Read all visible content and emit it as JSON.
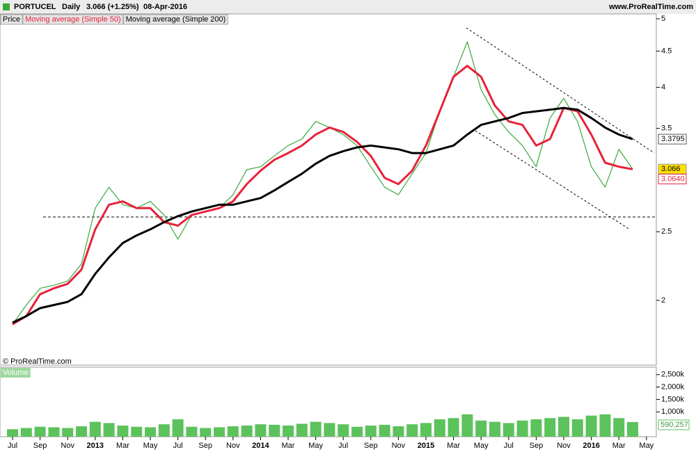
{
  "header": {
    "symbol": "PORTUCEL",
    "period": "Daily",
    "quote": "3.066 (+1.25%)",
    "date": "08-Apr-2016",
    "site": "www.ProRealTime.com",
    "copyright": "© ProRealTime.com"
  },
  "chart_data": [
    {
      "type": "line",
      "log_scale": true,
      "grid": false,
      "x": [
        "2012-07",
        "2012-08",
        "2012-09",
        "2012-10",
        "2012-11",
        "2012-12",
        "2013-01",
        "2013-02",
        "2013-03",
        "2013-04",
        "2013-05",
        "2013-06",
        "2013-07",
        "2013-08",
        "2013-09",
        "2013-10",
        "2013-11",
        "2013-12",
        "2014-01",
        "2014-02",
        "2014-03",
        "2014-04",
        "2014-05",
        "2014-06",
        "2014-07",
        "2014-08",
        "2014-09",
        "2014-10",
        "2014-11",
        "2014-12",
        "2015-01",
        "2015-02",
        "2015-03",
        "2015-04",
        "2015-05",
        "2015-06",
        "2015-07",
        "2015-08",
        "2015-09",
        "2015-10",
        "2015-11",
        "2015-12",
        "2016-01",
        "2016-02",
        "2016-03",
        "2016-04"
      ],
      "series": [
        {
          "name": "Price",
          "color": "#3aa83a",
          "values": [
            1.85,
            1.97,
            2.08,
            2.1,
            2.13,
            2.25,
            2.7,
            2.89,
            2.73,
            2.7,
            2.76,
            2.64,
            2.44,
            2.64,
            2.67,
            2.7,
            2.82,
            3.06,
            3.09,
            3.2,
            3.31,
            3.38,
            3.58,
            3.51,
            3.43,
            3.31,
            3.09,
            2.89,
            2.82,
            3.02,
            3.23,
            3.7,
            4.14,
            4.64,
            3.97,
            3.66,
            3.46,
            3.31,
            3.09,
            3.62,
            3.86,
            3.58,
            3.09,
            2.89,
            3.27,
            3.066
          ]
        },
        {
          "name": "Moving average (Simple 50)",
          "color": "#e8213a",
          "values": [
            1.85,
            1.9,
            2.04,
            2.08,
            2.11,
            2.21,
            2.52,
            2.73,
            2.76,
            2.7,
            2.7,
            2.58,
            2.55,
            2.64,
            2.67,
            2.7,
            2.76,
            2.92,
            3.05,
            3.16,
            3.23,
            3.31,
            3.43,
            3.51,
            3.46,
            3.35,
            3.2,
            2.98,
            2.92,
            3.05,
            3.31,
            3.7,
            4.14,
            4.29,
            4.14,
            3.77,
            3.58,
            3.54,
            3.31,
            3.38,
            3.74,
            3.7,
            3.43,
            3.13,
            3.09,
            3.064
          ],
          "value_labels": [
            null,
            null,
            null,
            null,
            null,
            null,
            null,
            null,
            null,
            null,
            null,
            null,
            null,
            null,
            null,
            null,
            null,
            null,
            null,
            null,
            null,
            null,
            null,
            null,
            null,
            null,
            null,
            null,
            null,
            null,
            null,
            null,
            null,
            null,
            null,
            null,
            null,
            null,
            null,
            null,
            null,
            null,
            null,
            null,
            null,
            "3.0640"
          ]
        },
        {
          "name": "Moving average (Simple 200)",
          "color": "#000000",
          "values": [
            1.86,
            1.9,
            1.95,
            1.97,
            1.99,
            2.04,
            2.18,
            2.3,
            2.41,
            2.47,
            2.52,
            2.58,
            2.63,
            2.67,
            2.7,
            2.73,
            2.73,
            2.76,
            2.79,
            2.86,
            2.94,
            3.02,
            3.12,
            3.2,
            3.25,
            3.29,
            3.31,
            3.29,
            3.27,
            3.23,
            3.23,
            3.27,
            3.31,
            3.43,
            3.54,
            3.58,
            3.62,
            3.68,
            3.7,
            3.72,
            3.74,
            3.72,
            3.62,
            3.51,
            3.43,
            3.3795
          ]
        }
      ],
      "ylim": [
        1.62,
        5.08
      ],
      "yticks": [
        2,
        2.5,
        3.5,
        4,
        4.5,
        5
      ],
      "xticks": [
        {
          "value": "2012-07",
          "label": "Jul"
        },
        {
          "value": "2012-09",
          "label": "Sep"
        },
        {
          "value": "2012-11",
          "label": "Nov"
        },
        {
          "value": "2013-01",
          "label": "2013"
        },
        {
          "value": "2013-03",
          "label": "Mar"
        },
        {
          "value": "2013-05",
          "label": "May"
        },
        {
          "value": "2013-07",
          "label": "Jul"
        },
        {
          "value": "2013-09",
          "label": "Sep"
        },
        {
          "value": "2013-11",
          "label": "Nov"
        },
        {
          "value": "2014-01",
          "label": "2014"
        },
        {
          "value": "2014-03",
          "label": "Mar"
        },
        {
          "value": "2014-05",
          "label": "May"
        },
        {
          "value": "2014-07",
          "label": "Jul"
        },
        {
          "value": "2014-09",
          "label": "Sep"
        },
        {
          "value": "2014-11",
          "label": "Nov"
        },
        {
          "value": "2015-01",
          "label": "2015"
        },
        {
          "value": "2015-03",
          "label": "Mar"
        },
        {
          "value": "2015-05",
          "label": "May"
        },
        {
          "value": "2015-07",
          "label": "Jul"
        },
        {
          "value": "2015-09",
          "label": "Sep"
        },
        {
          "value": "2015-11",
          "label": "Nov"
        },
        {
          "value": "2016-01",
          "label": "2016"
        },
        {
          "value": "2016-03",
          "label": "Mar"
        },
        {
          "value": "2016-05",
          "label": "May"
        }
      ]
    },
    {
      "type": "bar",
      "title": "Volume",
      "color": "#5cc25c",
      "values": [
        300000,
        350000,
        400000,
        380000,
        350000,
        420000,
        600000,
        550000,
        450000,
        400000,
        380000,
        500000,
        700000,
        400000,
        350000,
        380000,
        420000,
        450000,
        500000,
        480000,
        450000,
        520000,
        600000,
        550000,
        500000,
        400000,
        450000,
        480000,
        420000,
        500000,
        550000,
        700000,
        750000,
        900000,
        650000,
        600000,
        550000,
        650000,
        700000,
        750000,
        800000,
        700000,
        850000,
        900000,
        750000,
        590257
      ],
      "value_labels": [
        null,
        null,
        null,
        null,
        null,
        null,
        null,
        null,
        null,
        null,
        null,
        null,
        null,
        null,
        null,
        null,
        null,
        null,
        null,
        null,
        null,
        null,
        null,
        null,
        null,
        null,
        null,
        null,
        null,
        null,
        null,
        null,
        null,
        null,
        null,
        null,
        null,
        null,
        null,
        null,
        null,
        null,
        null,
        null,
        null,
        "590,257"
      ],
      "ylim": [
        0,
        2800000
      ],
      "yticks": [
        {
          "value": 2500000,
          "label": "2,500k"
        },
        {
          "value": 2000000,
          "label": "2,000k"
        },
        {
          "value": 1500000,
          "label": "1,500k"
        },
        {
          "value": 1000000,
          "label": "1,000k"
        }
      ]
    }
  ]
}
